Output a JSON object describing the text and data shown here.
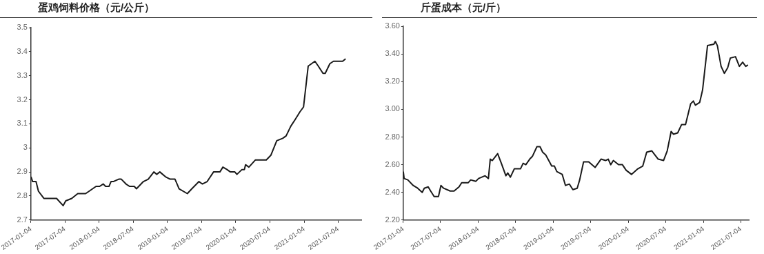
{
  "chart_data": [
    {
      "type": "line",
      "title": "蛋鸡饲料价格（元/公斤）",
      "grid": false,
      "legend": false,
      "marker": "none",
      "xlim": [
        "2017-01-04",
        "2021-11-05"
      ],
      "ylim": [
        2.7,
        3.5
      ],
      "yticks": [
        2.7,
        2.8,
        2.9,
        3,
        3.1,
        3.2,
        3.3,
        3.4,
        3.5
      ],
      "xticks": [
        "2017-01-04",
        "2017-07-04",
        "2018-01-04",
        "2018-07-04",
        "2019-01-04",
        "2019-07-04",
        "2020-01-04",
        "2020-07-04",
        "2021-01-04",
        "2021-07-04"
      ],
      "series": [
        {
          "color": "#1a1a1a",
          "x": [
            "2017-01-04",
            "2017-01-13",
            "2017-01-31",
            "2017-02-13",
            "2017-03-14",
            "2017-05-08",
            "2017-05-21",
            "2017-06-25",
            "2017-07-09",
            "2017-08-10",
            "2017-09-11",
            "2017-10-23",
            "2017-11-11",
            "2017-12-18",
            "2018-01-06",
            "2018-01-25",
            "2018-02-07",
            "2018-02-25",
            "2018-03-08",
            "2018-03-20",
            "2018-04-18",
            "2018-05-02",
            "2018-05-27",
            "2018-06-15",
            "2018-07-10",
            "2018-07-22",
            "2018-08-28",
            "2018-09-23",
            "2018-10-23",
            "2018-11-07",
            "2018-11-24",
            "2018-12-24",
            "2019-01-18",
            "2019-02-13",
            "2019-03-07",
            "2019-04-20",
            "2019-05-14",
            "2019-06-21",
            "2019-07-09",
            "2019-08-04",
            "2019-09-07",
            "2019-10-11",
            "2019-10-27",
            "2019-11-18",
            "2019-12-06",
            "2019-12-30",
            "2020-01-10",
            "2020-02-06",
            "2020-02-19",
            "2020-02-25",
            "2020-03-14",
            "2020-04-18",
            "2020-06-15",
            "2020-07-10",
            "2020-08-10",
            "2020-09-11",
            "2020-09-29",
            "2020-10-24",
            "2020-11-18",
            "2020-12-12",
            "2020-12-31",
            "2021-01-25",
            "2021-03-02",
            "2021-03-20",
            "2021-04-14",
            "2021-04-26",
            "2021-05-21",
            "2021-06-09",
            "2021-07-28",
            "2021-08-13"
          ],
          "values": [
            2.88,
            2.86,
            2.86,
            2.82,
            2.79,
            2.79,
            2.79,
            2.76,
            2.78,
            2.79,
            2.81,
            2.81,
            2.82,
            2.84,
            2.84,
            2.85,
            2.84,
            2.84,
            2.86,
            2.86,
            2.87,
            2.87,
            2.85,
            2.84,
            2.84,
            2.83,
            2.86,
            2.87,
            2.9,
            2.89,
            2.9,
            2.88,
            2.87,
            2.87,
            2.83,
            2.81,
            2.83,
            2.86,
            2.85,
            2.86,
            2.9,
            2.9,
            2.92,
            2.91,
            2.9,
            2.9,
            2.89,
            2.91,
            2.91,
            2.93,
            2.92,
            2.95,
            2.95,
            2.97,
            3.03,
            3.04,
            3.05,
            3.09,
            3.12,
            3.15,
            3.17,
            3.34,
            3.36,
            3.34,
            3.31,
            3.31,
            3.35,
            3.36,
            3.36,
            3.37
          ]
        }
      ]
    },
    {
      "type": "line",
      "title": "斤蛋成本（元/斤）",
      "grid": false,
      "legend": false,
      "marker": "none",
      "xlim": [
        "2017-01-04",
        "2021-08-12"
      ],
      "ylim": [
        2.2,
        3.6
      ],
      "yticks": [
        {
          "value": 2.2,
          "label": "2.20"
        },
        {
          "value": 2.4,
          "label": "2.40"
        },
        {
          "value": 2.6,
          "label": "2.60"
        },
        {
          "value": 2.8,
          "label": "2.80"
        },
        {
          "value": 3.0,
          "label": "3.00"
        },
        {
          "value": 3.2,
          "label": "3.20"
        },
        {
          "value": 3.4,
          "label": "3.40"
        },
        {
          "value": 3.6,
          "label": "3.60"
        }
      ],
      "xticks": [
        "2017-01-04",
        "2017-07-04",
        "2018-01-04",
        "2018-07-04",
        "2019-01-04",
        "2019-07-04",
        "2020-01-04",
        "2020-07-04",
        "2021-01-04",
        "2021-07-04"
      ],
      "series": [
        {
          "color": "#1a1a1a",
          "x": [
            "2017-01-04",
            "2017-01-08",
            "2017-01-26",
            "2017-02-21",
            "2017-03-15",
            "2017-04-06",
            "2017-04-16",
            "2017-05-05",
            "2017-05-17",
            "2017-06-03",
            "2017-06-24",
            "2017-07-06",
            "2017-07-19",
            "2017-08-20",
            "2017-09-08",
            "2017-10-02",
            "2017-10-15",
            "2017-11-16",
            "2017-11-28",
            "2017-12-23",
            "2018-01-05",
            "2018-02-06",
            "2018-02-22",
            "2018-03-03",
            "2018-03-13",
            "2018-04-08",
            "2018-04-26",
            "2018-05-18",
            "2018-05-27",
            "2018-06-09",
            "2018-06-28",
            "2018-07-28",
            "2018-08-10",
            "2018-08-23",
            "2018-09-11",
            "2018-09-24",
            "2018-10-16",
            "2018-10-31",
            "2018-11-13",
            "2018-11-28",
            "2018-12-27",
            "2019-01-09",
            "2019-01-21",
            "2019-02-16",
            "2019-03-04",
            "2019-03-23",
            "2019-04-09",
            "2019-04-30",
            "2019-05-12",
            "2019-05-31",
            "2019-06-25",
            "2019-07-26",
            "2019-08-24",
            "2019-09-15",
            "2019-09-28",
            "2019-10-10",
            "2019-10-23",
            "2019-11-17",
            "2019-12-06",
            "2019-12-24",
            "2020-01-19",
            "2020-02-19",
            "2020-03-14",
            "2020-04-02",
            "2020-04-27",
            "2020-05-28",
            "2020-06-23",
            "2020-07-11",
            "2020-07-30",
            "2020-08-10",
            "2020-08-31",
            "2020-09-19",
            "2020-10-08",
            "2020-11-02",
            "2020-11-15",
            "2020-11-25",
            "2020-12-16",
            "2020-12-30",
            "2021-01-23",
            "2021-02-23",
            "2021-03-02",
            "2021-03-12",
            "2021-03-30",
            "2021-04-15",
            "2021-05-01",
            "2021-05-14",
            "2021-06-08",
            "2021-06-27",
            "2021-07-13",
            "2021-07-28",
            "2021-08-08"
          ],
          "values": [
            2.55,
            2.5,
            2.49,
            2.45,
            2.43,
            2.4,
            2.43,
            2.44,
            2.41,
            2.37,
            2.37,
            2.45,
            2.43,
            2.41,
            2.41,
            2.44,
            2.47,
            2.47,
            2.49,
            2.48,
            2.5,
            2.52,
            2.5,
            2.64,
            2.63,
            2.68,
            2.61,
            2.52,
            2.54,
            2.51,
            2.57,
            2.57,
            2.61,
            2.6,
            2.64,
            2.66,
            2.73,
            2.73,
            2.69,
            2.67,
            2.59,
            2.59,
            2.55,
            2.53,
            2.45,
            2.46,
            2.42,
            2.43,
            2.49,
            2.62,
            2.62,
            2.58,
            2.64,
            2.63,
            2.64,
            2.6,
            2.63,
            2.6,
            2.6,
            2.56,
            2.53,
            2.57,
            2.59,
            2.69,
            2.7,
            2.64,
            2.63,
            2.7,
            2.84,
            2.82,
            2.83,
            2.89,
            2.89,
            3.04,
            3.06,
            3.03,
            3.05,
            3.14,
            3.46,
            3.47,
            3.49,
            3.46,
            3.31,
            3.26,
            3.3,
            3.37,
            3.38,
            3.31,
            3.34,
            3.31,
            3.32
          ]
        }
      ]
    }
  ]
}
